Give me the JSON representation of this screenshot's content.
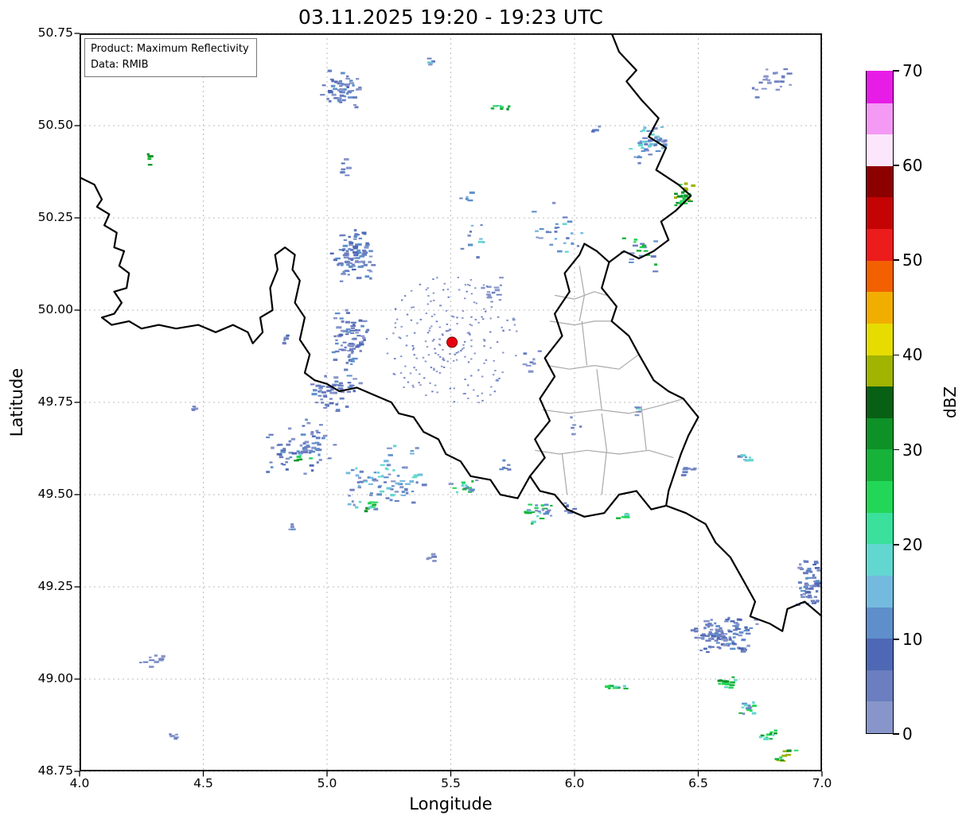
{
  "title": "03.11.2025 19:20 - 19:23 UTC",
  "info_box": {
    "line1": "Product: Maximum Reflectivity",
    "line2": "Data: RMIB"
  },
  "axes": {
    "xlabel": "Longitude",
    "ylabel": "Latitude",
    "xlim": [
      4.0,
      7.0
    ],
    "ylim": [
      48.75,
      50.75
    ],
    "xticks": [
      "4.0",
      "4.5",
      "5.0",
      "5.5",
      "6.0",
      "6.5",
      "7.0"
    ],
    "yticks": [
      "50.75",
      "50.50",
      "50.25",
      "50.00",
      "49.75",
      "49.50",
      "49.25",
      "49.00",
      "48.75"
    ],
    "grid": {
      "visible": true,
      "style": "dashed",
      "color": "#bcbcbc"
    }
  },
  "colorbar": {
    "label": "dBZ",
    "min": 0,
    "max": 70,
    "ticks": [
      0,
      10,
      20,
      30,
      40,
      50,
      60,
      70
    ],
    "colors_bottom_to_top": [
      "#8795ca",
      "#6a7ec0",
      "#4e68b5",
      "#5e8fcb",
      "#74bade",
      "#62d7d0",
      "#3ae09c",
      "#22d757",
      "#16b23a",
      "#0e9227",
      "#086014",
      "#a0b400",
      "#e6dc00",
      "#f2ae00",
      "#f26000",
      "#ec1c1c",
      "#c40404",
      "#8d0000",
      "#fbe6fb",
      "#f49af4",
      "#e71de7"
    ]
  },
  "map": {
    "country_border_color": "#000000",
    "district_border_color": "#a9a9a9",
    "country_borders": [
      [
        [
          4.0,
          50.36
        ],
        [
          4.06,
          50.34
        ],
        [
          4.09,
          50.3
        ],
        [
          4.07,
          50.28
        ],
        [
          4.12,
          50.26
        ],
        [
          4.1,
          50.23
        ],
        [
          4.15,
          50.21
        ],
        [
          4.14,
          50.17
        ],
        [
          4.18,
          50.16
        ],
        [
          4.16,
          50.12
        ],
        [
          4.2,
          50.1
        ],
        [
          4.19,
          50.06
        ],
        [
          4.14,
          50.05
        ],
        [
          4.17,
          50.02
        ],
        [
          4.14,
          49.99
        ],
        [
          4.09,
          49.98
        ],
        [
          4.13,
          49.96
        ],
        [
          4.2,
          49.97
        ],
        [
          4.25,
          49.95
        ],
        [
          4.32,
          49.96
        ],
        [
          4.39,
          49.95
        ],
        [
          4.48,
          49.96
        ],
        [
          4.55,
          49.94
        ],
        [
          4.62,
          49.96
        ],
        [
          4.68,
          49.94
        ],
        [
          4.7,
          49.91
        ],
        [
          4.74,
          49.94
        ],
        [
          4.73,
          49.98
        ],
        [
          4.78,
          50.0
        ],
        [
          4.77,
          50.06
        ],
        [
          4.8,
          50.11
        ],
        [
          4.79,
          50.15
        ],
        [
          4.83,
          50.17
        ],
        [
          4.87,
          50.15
        ],
        [
          4.86,
          50.11
        ],
        [
          4.89,
          50.08
        ],
        [
          4.87,
          50.02
        ],
        [
          4.91,
          49.98
        ],
        [
          4.89,
          49.92
        ],
        [
          4.93,
          49.88
        ],
        [
          4.91,
          49.83
        ],
        [
          4.95,
          49.81
        ],
        [
          5.0,
          49.8
        ],
        [
          5.05,
          49.78
        ],
        [
          5.12,
          49.79
        ],
        [
          5.19,
          49.77
        ],
        [
          5.26,
          49.75
        ],
        [
          5.29,
          49.72
        ],
        [
          5.35,
          49.71
        ],
        [
          5.39,
          49.67
        ],
        [
          5.45,
          49.65
        ],
        [
          5.48,
          49.61
        ],
        [
          5.54,
          49.59
        ],
        [
          5.58,
          49.55
        ],
        [
          5.66,
          49.54
        ],
        [
          5.7,
          49.5
        ],
        [
          5.77,
          49.49
        ],
        [
          5.82,
          49.55
        ]
      ],
      [
        [
          5.82,
          49.55
        ],
        [
          5.88,
          49.6
        ],
        [
          5.84,
          49.65
        ],
        [
          5.9,
          49.7
        ],
        [
          5.86,
          49.76
        ],
        [
          5.92,
          49.82
        ],
        [
          5.88,
          49.87
        ],
        [
          5.95,
          49.93
        ],
        [
          5.92,
          49.99
        ],
        [
          5.98,
          50.05
        ],
        [
          5.96,
          50.1
        ],
        [
          6.02,
          50.15
        ],
        [
          6.04,
          50.18
        ],
        [
          6.09,
          50.16
        ],
        [
          6.14,
          50.13
        ]
      ],
      [
        [
          6.14,
          50.13
        ],
        [
          6.11,
          50.06
        ],
        [
          6.17,
          50.01
        ],
        [
          6.15,
          49.97
        ],
        [
          6.22,
          49.93
        ],
        [
          6.26,
          49.88
        ],
        [
          6.32,
          49.81
        ],
        [
          6.38,
          49.78
        ],
        [
          6.44,
          49.76
        ],
        [
          6.5,
          49.71
        ],
        [
          6.46,
          49.66
        ],
        [
          6.43,
          49.61
        ],
        [
          6.4,
          49.55
        ],
        [
          6.38,
          49.51
        ],
        [
          6.37,
          49.47
        ]
      ],
      [
        [
          6.37,
          49.47
        ],
        [
          6.31,
          49.46
        ],
        [
          6.25,
          49.51
        ],
        [
          6.18,
          49.5
        ],
        [
          6.12,
          49.45
        ],
        [
          6.04,
          49.44
        ],
        [
          5.97,
          49.46
        ],
        [
          5.92,
          49.5
        ],
        [
          5.86,
          49.51
        ],
        [
          5.82,
          49.55
        ]
      ],
      [
        [
          6.15,
          50.75
        ],
        [
          6.18,
          50.7
        ],
        [
          6.25,
          50.65
        ],
        [
          6.21,
          50.62
        ],
        [
          6.27,
          50.57
        ],
        [
          6.34,
          50.52
        ],
        [
          6.3,
          50.47
        ],
        [
          6.37,
          50.44
        ],
        [
          6.33,
          50.38
        ],
        [
          6.42,
          50.34
        ],
        [
          6.47,
          50.31
        ],
        [
          6.41,
          50.27
        ],
        [
          6.35,
          50.24
        ],
        [
          6.38,
          50.19
        ],
        [
          6.32,
          50.16
        ],
        [
          6.26,
          50.14
        ],
        [
          6.2,
          50.16
        ],
        [
          6.14,
          50.13
        ]
      ],
      [
        [
          6.37,
          49.47
        ],
        [
          6.45,
          49.45
        ],
        [
          6.53,
          49.42
        ],
        [
          6.57,
          49.37
        ],
        [
          6.63,
          49.33
        ],
        [
          6.68,
          49.27
        ],
        [
          6.73,
          49.21
        ],
        [
          6.71,
          49.17
        ],
        [
          6.79,
          49.15
        ],
        [
          6.84,
          49.13
        ],
        [
          6.86,
          49.19
        ],
        [
          6.93,
          49.21
        ],
        [
          7.0,
          49.17
        ]
      ]
    ],
    "district_borders": [
      [
        [
          5.9,
          49.97
        ],
        [
          6.0,
          49.96
        ],
        [
          6.08,
          49.97
        ],
        [
          6.15,
          49.97
        ]
      ],
      [
        [
          5.92,
          50.04
        ],
        [
          6.0,
          50.03
        ],
        [
          6.08,
          50.05
        ],
        [
          6.13,
          50.04
        ]
      ],
      [
        [
          6.02,
          50.12
        ],
        [
          6.04,
          50.04
        ],
        [
          6.02,
          49.97
        ]
      ],
      [
        [
          5.89,
          49.85
        ],
        [
          5.98,
          49.84
        ],
        [
          6.08,
          49.85
        ],
        [
          6.18,
          49.84
        ],
        [
          6.26,
          49.88
        ]
      ],
      [
        [
          5.87,
          49.73
        ],
        [
          5.98,
          49.72
        ],
        [
          6.1,
          49.73
        ],
        [
          6.22,
          49.72
        ],
        [
          6.34,
          49.74
        ],
        [
          6.44,
          49.76
        ]
      ],
      [
        [
          5.84,
          49.62
        ],
        [
          5.94,
          49.61
        ],
        [
          6.05,
          49.62
        ],
        [
          6.18,
          49.61
        ],
        [
          6.3,
          49.62
        ],
        [
          6.4,
          49.6
        ]
      ],
      [
        [
          6.09,
          49.84
        ],
        [
          6.11,
          49.73
        ]
      ],
      [
        [
          6.11,
          49.72
        ],
        [
          6.13,
          49.62
        ],
        [
          6.11,
          49.5
        ]
      ],
      [
        [
          5.95,
          49.61
        ],
        [
          5.97,
          49.5
        ]
      ],
      [
        [
          6.27,
          49.74
        ],
        [
          6.29,
          49.62
        ]
      ],
      [
        [
          6.03,
          49.97
        ],
        [
          6.05,
          49.85
        ]
      ]
    ]
  },
  "chart_data": {
    "type": "heatmap",
    "subtype": "radar-maximum-reflectivity",
    "units": "dBZ",
    "time_window_utc": "03.11.2025 19:20 - 19:23",
    "value_range": [
      0,
      70
    ],
    "radar_site": {
      "lon": 5.505,
      "lat": 49.913,
      "marker_color": "#e8000e"
    },
    "palettes": {
      "paleblue": [
        "#8795ca",
        "#8795ca",
        "#6a7ec0"
      ],
      "blue": [
        "#8795ca",
        "#6a7ec0",
        "#6a7ec0",
        "#4e68b5",
        "#5e8fcb"
      ],
      "bluecyan": [
        "#6a7ec0",
        "#5e8fcb",
        "#74bade",
        "#62d7d0",
        "#8795ca"
      ],
      "mixedgreen": [
        "#6a7ec0",
        "#5e8fcb",
        "#62d7d0",
        "#22d757",
        "#16b23a",
        "#8795ca"
      ],
      "green": [
        "#22d757",
        "#16b23a",
        "#0e9227",
        "#62d7d0"
      ],
      "greenstrong": [
        "#16b23a",
        "#0e9227",
        "#22d757",
        "#a0b400"
      ]
    },
    "clusters": [
      {
        "c": [
          5.07,
          50.6
        ],
        "s": [
          0.1,
          0.055
        ],
        "n": 60,
        "p": "blue",
        "sl": 0.5
      },
      {
        "c": [
          5.07,
          50.385
        ],
        "s": [
          0.02,
          0.03
        ],
        "n": 8,
        "p": "blue"
      },
      {
        "c": [
          4.285,
          50.41
        ],
        "s": [
          0.012,
          0.02
        ],
        "n": 4,
        "p": "green"
      },
      {
        "c": [
          5.415,
          50.67
        ],
        "s": [
          0.025,
          0.015
        ],
        "n": 6,
        "p": "bluecyan"
      },
      {
        "c": [
          5.7,
          50.55
        ],
        "s": [
          0.045,
          0.01
        ],
        "n": 7,
        "p": "green",
        "sl": 0.4
      },
      {
        "c": [
          6.09,
          50.49
        ],
        "s": [
          0.02,
          0.012
        ],
        "n": 4,
        "p": "blue"
      },
      {
        "c": [
          6.3,
          50.45
        ],
        "s": [
          0.085,
          0.055
        ],
        "n": 48,
        "p": "bluecyan",
        "sl": 0.6
      },
      {
        "c": [
          6.455,
          50.315
        ],
        "s": [
          0.05,
          0.04
        ],
        "n": 26,
        "p": "greenstrong",
        "sl": 0.5
      },
      {
        "c": [
          6.8,
          50.62
        ],
        "s": [
          0.1,
          0.05
        ],
        "n": 24,
        "p": "paleblue",
        "sl": 0.6
      },
      {
        "c": [
          5.6,
          50.19
        ],
        "s": [
          0.07,
          0.05
        ],
        "n": 10,
        "p": "bluecyan"
      },
      {
        "c": [
          5.95,
          50.22
        ],
        "s": [
          0.12,
          0.1
        ],
        "n": 26,
        "p": "bluecyan"
      },
      {
        "c": [
          6.28,
          50.15
        ],
        "s": [
          0.1,
          0.06
        ],
        "n": 20,
        "p": "mixedgreen"
      },
      {
        "c": [
          5.11,
          50.16
        ],
        "s": [
          0.095,
          0.09
        ],
        "n": 95,
        "p": "blue"
      },
      {
        "c": [
          5.1,
          49.92
        ],
        "s": [
          0.08,
          0.09
        ],
        "n": 75,
        "p": "blue"
      },
      {
        "c": [
          4.83,
          49.92
        ],
        "s": [
          0.02,
          0.02
        ],
        "n": 6,
        "p": "blue"
      },
      {
        "c": [
          5.66,
          50.05
        ],
        "s": [
          0.08,
          0.05
        ],
        "n": 14,
        "p": "paleblue"
      },
      {
        "c": [
          5.82,
          49.86
        ],
        "s": [
          0.05,
          0.04
        ],
        "n": 8,
        "p": "paleblue"
      },
      {
        "c": [
          6.0,
          49.68
        ],
        "s": [
          0.05,
          0.04
        ],
        "n": 6,
        "p": "paleblue"
      },
      {
        "c": [
          5.03,
          49.78
        ],
        "s": [
          0.11,
          0.055
        ],
        "n": 55,
        "p": "blue",
        "sl": 0.4
      },
      {
        "c": [
          4.89,
          49.63
        ],
        "s": [
          0.15,
          0.085
        ],
        "n": 70,
        "p": "blue",
        "sl": 0.5
      },
      {
        "c": [
          4.905,
          49.6
        ],
        "s": [
          0.04,
          0.02
        ],
        "n": 6,
        "p": "green"
      },
      {
        "c": [
          5.24,
          49.54
        ],
        "s": [
          0.18,
          0.1
        ],
        "n": 85,
        "p": "bluecyan",
        "sl": 0.4
      },
      {
        "c": [
          5.18,
          49.465
        ],
        "s": [
          0.05,
          0.02
        ],
        "n": 8,
        "p": "green"
      },
      {
        "c": [
          5.56,
          49.52
        ],
        "s": [
          0.065,
          0.03
        ],
        "n": 18,
        "p": "mixedgreen"
      },
      {
        "c": [
          5.855,
          49.45
        ],
        "s": [
          0.07,
          0.035
        ],
        "n": 26,
        "p": "mixedgreen"
      },
      {
        "c": [
          5.99,
          49.46
        ],
        "s": [
          0.03,
          0.02
        ],
        "n": 8,
        "p": "blue"
      },
      {
        "c": [
          6.2,
          49.44
        ],
        "s": [
          0.03,
          0.015
        ],
        "n": 5,
        "p": "green"
      },
      {
        "c": [
          6.26,
          49.73
        ],
        "s": [
          0.02,
          0.02
        ],
        "n": 6,
        "p": "bluecyan"
      },
      {
        "c": [
          6.46,
          49.56
        ],
        "s": [
          0.03,
          0.025
        ],
        "n": 8,
        "p": "blue"
      },
      {
        "c": [
          6.7,
          49.6
        ],
        "s": [
          0.04,
          0.015
        ],
        "n": 9,
        "p": "bluecyan",
        "sl": 0.4
      },
      {
        "c": [
          6.95,
          49.26
        ],
        "s": [
          0.05,
          0.07
        ],
        "n": 55,
        "p": "blue"
      },
      {
        "c": [
          6.62,
          49.12
        ],
        "s": [
          0.15,
          0.055
        ],
        "n": 115,
        "p": "blue",
        "sl": 0.15
      },
      {
        "c": [
          6.62,
          48.99
        ],
        "s": [
          0.05,
          0.022
        ],
        "n": 16,
        "p": "green",
        "sl": 0.7
      },
      {
        "c": [
          6.7,
          48.92
        ],
        "s": [
          0.05,
          0.022
        ],
        "n": 14,
        "p": "mixedgreen",
        "sl": 0.7
      },
      {
        "c": [
          6.78,
          48.85
        ],
        "s": [
          0.045,
          0.02
        ],
        "n": 12,
        "p": "green",
        "sl": 0.7
      },
      {
        "c": [
          6.855,
          48.79
        ],
        "s": [
          0.04,
          0.02
        ],
        "n": 10,
        "p": "greenstrong",
        "sl": 0.7
      },
      {
        "c": [
          6.17,
          48.98
        ],
        "s": [
          0.05,
          0.015
        ],
        "n": 8,
        "p": "green",
        "sl": 0.3
      },
      {
        "c": [
          4.3,
          49.05
        ],
        "s": [
          0.06,
          0.02
        ],
        "n": 10,
        "p": "paleblue",
        "sl": 0.5
      },
      {
        "c": [
          4.38,
          48.85
        ],
        "s": [
          0.02,
          0.012
        ],
        "n": 5,
        "p": "paleblue"
      },
      {
        "c": [
          4.47,
          49.735
        ],
        "s": [
          0.015,
          0.01
        ],
        "n": 4,
        "p": "paleblue"
      },
      {
        "c": [
          5.43,
          49.33
        ],
        "s": [
          0.03,
          0.012
        ],
        "n": 5,
        "p": "paleblue"
      },
      {
        "c": [
          4.86,
          49.41
        ],
        "s": [
          0.02,
          0.012
        ],
        "n": 4,
        "p": "blue"
      },
      {
        "c": [
          5.72,
          49.58
        ],
        "s": [
          0.03,
          0.02
        ],
        "n": 6,
        "p": "blue"
      },
      {
        "c": [
          5.57,
          50.31
        ],
        "s": [
          0.03,
          0.02
        ],
        "n": 5,
        "p": "bluecyan"
      },
      {
        "type": "rings",
        "c": [
          5.505,
          49.913
        ],
        "rmin": 0.05,
        "rstep": 0.027,
        "rings": 9,
        "n": 220,
        "p": "paleblue"
      }
    ]
  }
}
